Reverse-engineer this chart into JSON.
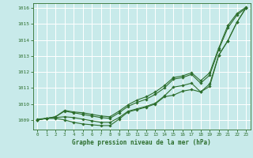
{
  "title": "Graphe pression niveau de la mer (hPa)",
  "bg_color": "#c8eaea",
  "grid_color": "#ffffff",
  "line_color": "#2d6e2d",
  "text_color": "#2d6e2d",
  "ylim": [
    1008.4,
    1016.3
  ],
  "xlim": [
    -0.5,
    23.5
  ],
  "yticks": [
    1009,
    1010,
    1011,
    1012,
    1013,
    1014,
    1015,
    1016
  ],
  "xticks": [
    0,
    1,
    2,
    3,
    4,
    5,
    6,
    7,
    8,
    9,
    10,
    11,
    12,
    13,
    14,
    15,
    16,
    17,
    18,
    19,
    20,
    21,
    22,
    23
  ],
  "series": [
    [
      1009.0,
      1009.1,
      1009.1,
      1009.0,
      1008.85,
      1008.75,
      1008.7,
      1008.65,
      1008.65,
      1009.05,
      1009.5,
      1009.65,
      1009.8,
      1010.0,
      1010.45,
      1010.55,
      1010.8,
      1010.9,
      1010.75,
      1011.1,
      1013.05,
      1013.95,
      1015.1,
      1016.0
    ],
    [
      1009.0,
      1009.1,
      1009.15,
      1009.2,
      1009.15,
      1009.05,
      1008.95,
      1008.85,
      1008.85,
      1009.15,
      1009.55,
      1009.7,
      1009.85,
      1010.05,
      1010.5,
      1011.05,
      1011.15,
      1011.3,
      1010.75,
      1011.25,
      1013.05,
      1013.95,
      1015.1,
      1016.0
    ],
    [
      1009.0,
      1009.1,
      1009.2,
      1009.55,
      1009.45,
      1009.35,
      1009.25,
      1009.15,
      1009.1,
      1009.45,
      1009.85,
      1010.1,
      1010.3,
      1010.6,
      1011.0,
      1011.55,
      1011.65,
      1011.85,
      1011.3,
      1011.8,
      1013.4,
      1014.75,
      1015.55,
      1016.0
    ],
    [
      1009.05,
      1009.1,
      1009.2,
      1009.6,
      1009.5,
      1009.45,
      1009.35,
      1009.25,
      1009.2,
      1009.55,
      1009.95,
      1010.25,
      1010.45,
      1010.75,
      1011.15,
      1011.65,
      1011.75,
      1011.95,
      1011.45,
      1011.95,
      1013.5,
      1014.9,
      1015.65,
      1016.05
    ]
  ]
}
